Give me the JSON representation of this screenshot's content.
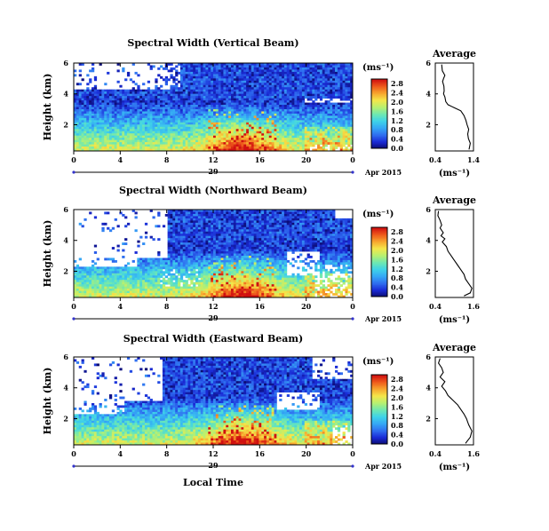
{
  "colors": {
    "colormap": [
      "#0b0b6e",
      "#1a2bd6",
      "#2f6ff0",
      "#35a8f5",
      "#3fd3e8",
      "#70e8b0",
      "#b8f070",
      "#f4e64a",
      "#f7a62e",
      "#ee5a1c",
      "#d01010"
    ],
    "profile_line": "#000000",
    "date_axis_dots": "#3333cc"
  },
  "common": {
    "ylabel": "Height (km)",
    "xlabel": "Local Time",
    "unit": "(ms⁻¹)",
    "date": "Apr 2015",
    "day": "29",
    "avg_title": "Average",
    "avg_xlabel": "(ms⁻¹)"
  },
  "chart_data": [
    {
      "type": "heatmap",
      "title": "Spectral Width (Vertical Beam)",
      "ylabel": "Height (km)",
      "x_ticks": [
        "0",
        "4",
        "8",
        "12",
        "16",
        "20",
        "0"
      ],
      "y_ticks": [
        "6",
        "4",
        "2"
      ],
      "xlim": [
        0,
        24
      ],
      "ylim": [
        0.3,
        6
      ],
      "colorbar": {
        "ticks": [
          "2.8",
          "2.4",
          "2.0",
          "1.6",
          "1.2",
          "0.8",
          "0.4",
          "0.0"
        ],
        "range": [
          0,
          3.0
        ]
      }
    },
    {
      "type": "line",
      "title": "Average",
      "x_ticks": [
        "0.4",
        "1.4"
      ],
      "y_ticks": [
        "6",
        "4",
        "2"
      ],
      "xlim": [
        0.4,
        1.6
      ],
      "ylim": [
        0.3,
        6
      ],
      "x": [
        0.6,
        0.62,
        0.7,
        0.66,
        0.63,
        0.67,
        0.68,
        0.66,
        0.7,
        0.73,
        0.8,
        1.0,
        1.2,
        1.3,
        1.36,
        1.4,
        1.45,
        1.42,
        1.44,
        1.5,
        1.48,
        1.46
      ],
      "y": [
        5.9,
        5.5,
        5.2,
        5.0,
        4.8,
        4.5,
        4.2,
        4.0,
        3.8,
        3.5,
        3.3,
        3.1,
        2.9,
        2.6,
        2.3,
        2.0,
        1.7,
        1.4,
        1.1,
        0.8,
        0.6,
        0.4
      ]
    },
    {
      "type": "heatmap",
      "title": "Spectral Width (Northward Beam)",
      "ylabel": "Height (km)",
      "x_ticks": [
        "0",
        "4",
        "8",
        "12",
        "16",
        "20",
        "0"
      ],
      "y_ticks": [
        "6",
        "4",
        "2"
      ],
      "xlim": [
        0,
        24
      ],
      "ylim": [
        0.3,
        6
      ],
      "colorbar": {
        "ticks": [
          "2.8",
          "2.4",
          "2.0",
          "1.6",
          "1.2",
          "0.8",
          "0.4",
          "0.0"
        ],
        "range": [
          0,
          3.0
        ]
      }
    },
    {
      "type": "line",
      "title": "Average",
      "x_ticks": [
        "0.4",
        "1.6"
      ],
      "y_ticks": [
        "6",
        "4",
        "2"
      ],
      "xlim": [
        0.4,
        1.6
      ],
      "ylim": [
        0.3,
        6
      ],
      "x": [
        0.5,
        0.48,
        0.55,
        0.6,
        0.55,
        0.65,
        0.58,
        0.7,
        0.62,
        0.75,
        0.8,
        0.9,
        1.0,
        1.1,
        1.2,
        1.3,
        1.35,
        1.45,
        1.55,
        1.5,
        1.3
      ],
      "y": [
        5.9,
        5.6,
        5.3,
        5.0,
        4.8,
        4.5,
        4.3,
        4.1,
        3.9,
        3.6,
        3.3,
        3.0,
        2.7,
        2.4,
        2.1,
        1.8,
        1.5,
        1.2,
        0.9,
        0.6,
        0.4
      ]
    },
    {
      "type": "heatmap",
      "title": "Spectral Width (Eastward Beam)",
      "ylabel": "Height (km)",
      "x_ticks": [
        "0",
        "4",
        "8",
        "12",
        "16",
        "20",
        "0"
      ],
      "y_ticks": [
        "6",
        "4",
        "2"
      ],
      "xlim": [
        0,
        24
      ],
      "ylim": [
        0.3,
        6
      ],
      "colorbar": {
        "ticks": [
          "2.8",
          "2.4",
          "2.0",
          "1.6",
          "1.2",
          "0.8",
          "0.4",
          "0.0"
        ],
        "range": [
          0,
          3.0
        ]
      }
    },
    {
      "type": "line",
      "title": "Average",
      "x_ticks": [
        "0.4",
        "1.6"
      ],
      "y_ticks": [
        "6",
        "4",
        "2"
      ],
      "xlim": [
        0.4,
        1.6
      ],
      "ylim": [
        0.3,
        6
      ],
      "x": [
        0.55,
        0.5,
        0.6,
        0.65,
        0.55,
        0.7,
        0.6,
        0.72,
        0.8,
        0.95,
        1.1,
        1.2,
        1.3,
        1.38,
        1.45,
        1.55,
        1.5,
        1.35
      ],
      "y": [
        5.9,
        5.6,
        5.3,
        5.0,
        4.7,
        4.4,
        4.1,
        3.8,
        3.5,
        3.2,
        2.9,
        2.6,
        2.3,
        2.0,
        1.6,
        1.2,
        0.8,
        0.4
      ]
    }
  ]
}
